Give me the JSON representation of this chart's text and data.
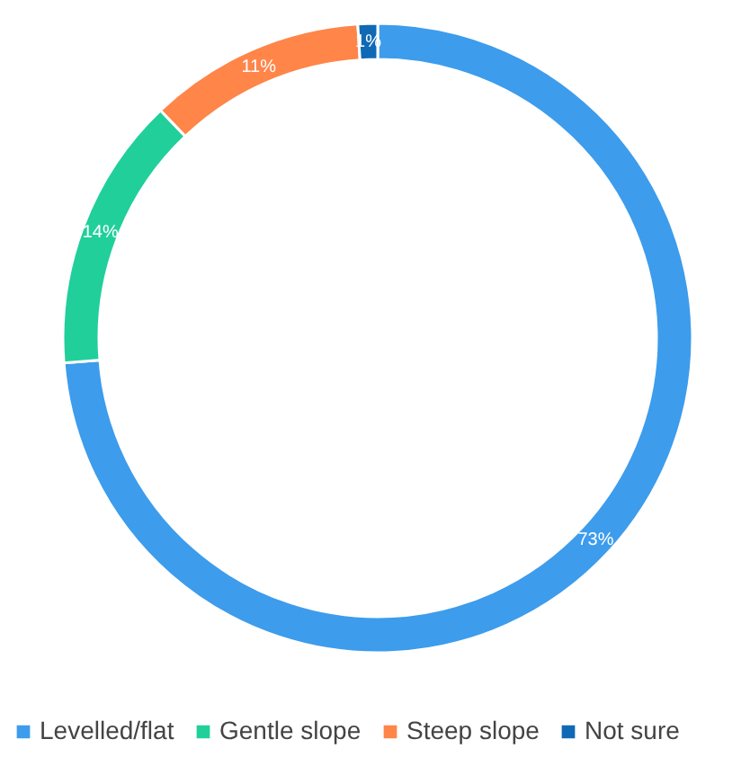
{
  "chart_data": {
    "type": "donut",
    "categories": [
      "Levelled/flat",
      "Gentle slope",
      "Steep slope",
      "Not sure"
    ],
    "values": [
      73,
      14,
      11,
      1
    ],
    "colors": [
      "#3d9cec",
      "#21cf9b",
      "#ff8549",
      "#0f69b5"
    ],
    "value_labels": [
      "73%",
      "14%",
      "11%",
      "1%"
    ],
    "legend": "bottom"
  }
}
